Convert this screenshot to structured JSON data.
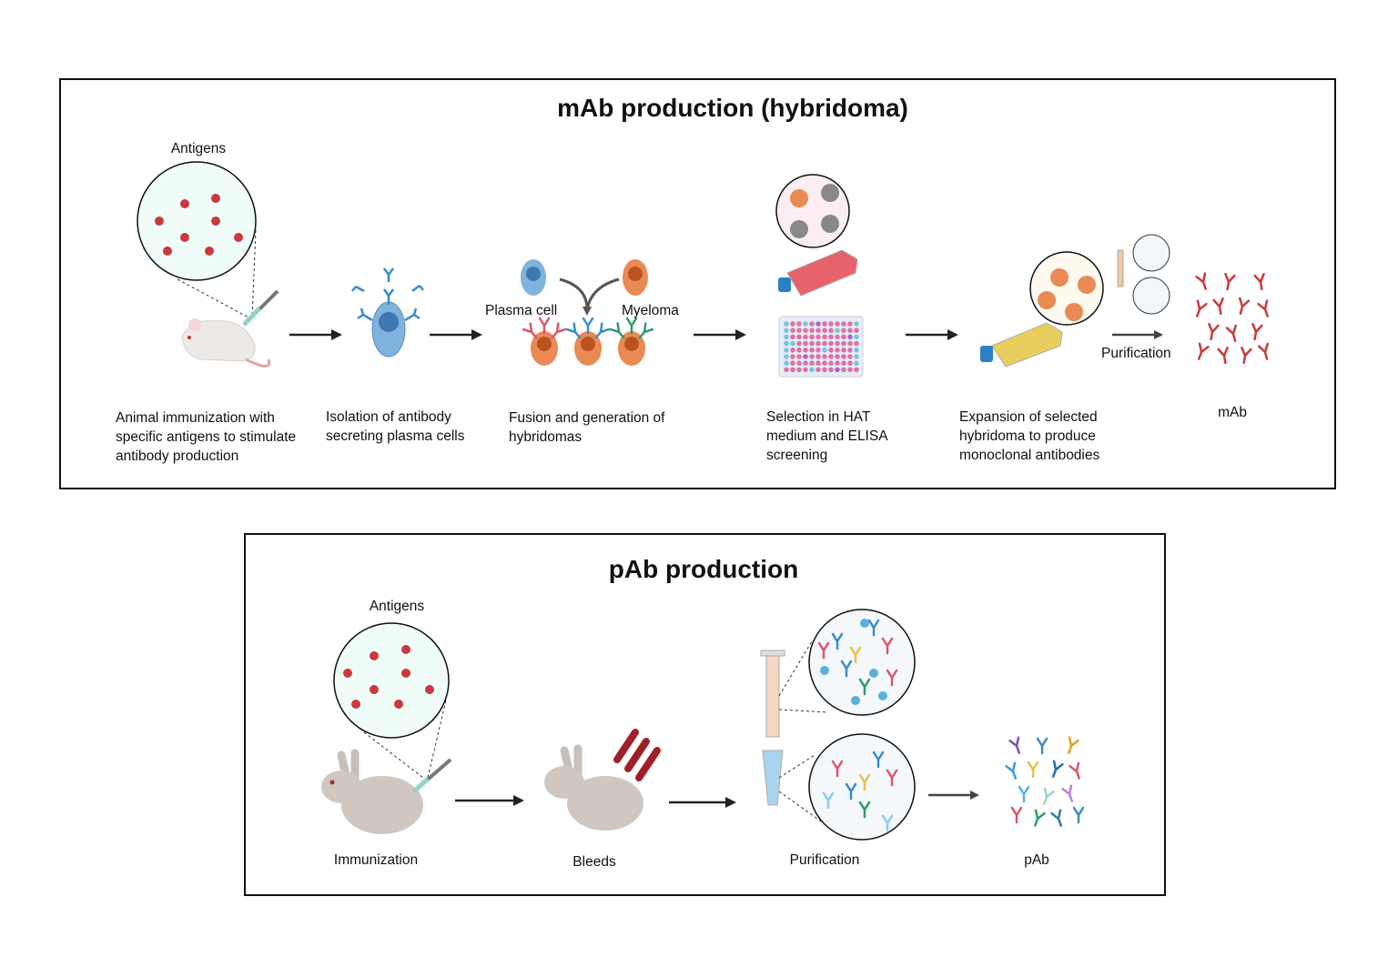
{
  "mab_panel": {
    "title": "mAb production (hybridoma)",
    "antigens_label": "Antigens",
    "plasma_cell_label": "Plasma cell",
    "myeloma_label": "Myeloma",
    "purification_label": "Purification",
    "steps": [
      "Animal immunization with\nspecific antigens to stimulate\nantibody production",
      "Isolation of  antibody\nsecreting plasma cells",
      "Fusion and generation of\nhybridomas",
      "Selection in HAT\nmedium and ELISA\nscreening",
      "Expansion of selected\nhybridoma to produce\nmonoclonal antibodies",
      "mAb"
    ]
  },
  "pab_panel": {
    "title": "pAb production",
    "antigens_label": "Antigens",
    "steps": [
      "Immunization",
      "Bleeds",
      "Purification",
      "pAb"
    ]
  },
  "colors": {
    "antigen": "#c9393d",
    "circle_fill": "#effcf8",
    "plasma_cell": "#7fb2dc",
    "myeloma": "#e98a55",
    "mab": "#c9393d",
    "flask_red": "#e8626a",
    "flask_yellow": "#e8cf5d",
    "well_pink": "#e170a8",
    "well_blue": "#79c3e0",
    "rabbit": "#cfc7c0"
  }
}
